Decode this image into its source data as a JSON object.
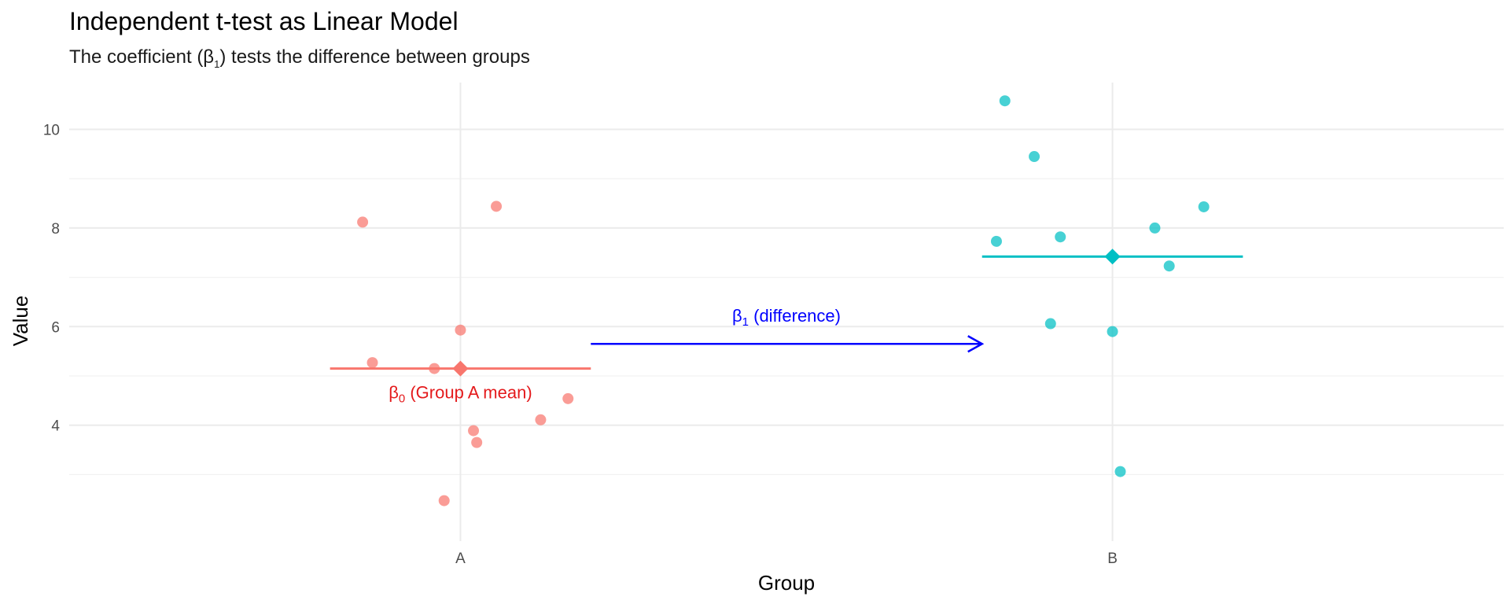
{
  "chart_data": {
    "type": "scatter",
    "title": "Independent t-test as Linear Model",
    "subtitle": {
      "before": "The coefficient (β",
      "sub": "1",
      "after": ") tests the difference between groups"
    },
    "xlabel": "Group",
    "ylabel": "Value",
    "categories": [
      "A",
      "B"
    ],
    "ylim": [
      1.65,
      10.95
    ],
    "yticks": [
      4,
      6,
      8,
      10
    ],
    "grid": true,
    "legend": "none",
    "series": [
      {
        "category": "A",
        "color": "#F8766D",
        "points": [
          {
            "x": -0.15,
            "y": 8.12
          },
          {
            "x": 0.055,
            "y": 8.44
          },
          {
            "x": 0.0,
            "y": 5.93
          },
          {
            "x": -0.135,
            "y": 5.27
          },
          {
            "x": -0.04,
            "y": 5.15
          },
          {
            "x": 0.165,
            "y": 4.54
          },
          {
            "x": 0.123,
            "y": 4.11
          },
          {
            "x": 0.02,
            "y": 3.89
          },
          {
            "x": 0.025,
            "y": 3.65
          },
          {
            "x": -0.025,
            "y": 2.47
          }
        ],
        "mean": 5.15
      },
      {
        "category": "B",
        "color": "#00BFC4",
        "points": [
          {
            "x": -0.165,
            "y": 10.58
          },
          {
            "x": -0.12,
            "y": 9.45
          },
          {
            "x": 0.14,
            "y": 8.43
          },
          {
            "x": 0.065,
            "y": 8.0
          },
          {
            "x": -0.08,
            "y": 7.82
          },
          {
            "x": -0.178,
            "y": 7.73
          },
          {
            "x": 0.087,
            "y": 7.23
          },
          {
            "x": -0.095,
            "y": 6.06
          },
          {
            "x": 0.0,
            "y": 5.9
          },
          {
            "x": 0.012,
            "y": 3.06
          }
        ],
        "mean": 7.42
      }
    ],
    "annotations": {
      "beta0": {
        "symbol": "β",
        "sub": "0",
        "text": " (Group A mean)",
        "color": "#E41A1C"
      },
      "beta1": {
        "symbol": "β",
        "sub": "1",
        "text": " (difference)",
        "color": "#0000FF"
      },
      "arrow": {
        "from_x": 1.2,
        "to_x": 1.8,
        "y": 5.65,
        "color": "#0000FF"
      }
    }
  }
}
